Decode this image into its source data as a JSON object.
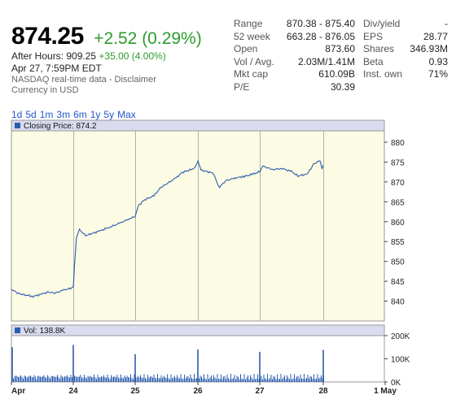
{
  "quote": {
    "price": "874.25",
    "change": "+2.52 (0.29%)",
    "after_hours_label": "After Hours: 909.25",
    "after_hours_change": "+35.00 (4.00%)",
    "as_of": "Apr 27, 7:59PM EDT",
    "disclaimer": "NASDAQ real-time data - Disclaimer",
    "currency": "Currency in USD"
  },
  "stats_left": [
    {
      "label": "Range",
      "value": "870.38 - 875.40"
    },
    {
      "label": "52 week",
      "value": "663.28 - 876.05"
    },
    {
      "label": "Open",
      "value": "873.60"
    },
    {
      "label": "Vol / Avg.",
      "value": "2.03M/1.41M"
    },
    {
      "label": "Mkt cap",
      "value": "610.09B"
    },
    {
      "label": "P/E",
      "value": "30.39"
    }
  ],
  "stats_right": [
    {
      "label": "Div/yield",
      "value": "-"
    },
    {
      "label": "EPS",
      "value": "28.77"
    },
    {
      "label": "Shares",
      "value": "346.93M"
    },
    {
      "label": "Beta",
      "value": "0.93"
    },
    {
      "label": "Inst. own",
      "value": "71%"
    }
  ],
  "ranges": [
    "1d",
    "5d",
    "1m",
    "3m",
    "6m",
    "1y",
    "5y",
    "Max"
  ],
  "colors": {
    "line": "#2a5db0",
    "price_bg": "#fcfbe3",
    "legend_bg": "#d9dbef",
    "gain": "#2c9b2c",
    "link": "#2255cc"
  },
  "chart_data": {
    "type": "line",
    "price_legend": "Closing Price: 874.2",
    "price_ylim": [
      835,
      880
    ],
    "price_yticks": [
      840,
      845,
      850,
      855,
      860,
      865,
      870,
      875,
      880
    ],
    "x_days": [
      "Apr",
      "24",
      "25",
      "26",
      "27",
      "28",
      "1 May"
    ],
    "price_series": [
      [
        0.0,
        843.0
      ],
      [
        0.1,
        842.0
      ],
      [
        0.2,
        841.6
      ],
      [
        0.35,
        841.2
      ],
      [
        0.5,
        841.8
      ],
      [
        0.6,
        842.3
      ],
      [
        0.7,
        842.0
      ],
      [
        0.85,
        842.8
      ],
      [
        0.95,
        843.2
      ],
      [
        1.0,
        843.5
      ],
      [
        1.02,
        849.0
      ],
      [
        1.05,
        856.0
      ],
      [
        1.1,
        858.0
      ],
      [
        1.2,
        856.5
      ],
      [
        1.3,
        857.0
      ],
      [
        1.45,
        857.8
      ],
      [
        1.6,
        858.7
      ],
      [
        1.75,
        859.6
      ],
      [
        1.9,
        860.7
      ],
      [
        2.0,
        861.3
      ],
      [
        2.05,
        864.0
      ],
      [
        2.15,
        865.5
      ],
      [
        2.3,
        866.5
      ],
      [
        2.4,
        868.5
      ],
      [
        2.5,
        869.5
      ],
      [
        2.65,
        871.0
      ],
      [
        2.75,
        872.4
      ],
      [
        2.85,
        872.9
      ],
      [
        2.95,
        873.5
      ],
      [
        3.0,
        875.4
      ],
      [
        3.05,
        873.0
      ],
      [
        3.15,
        872.6
      ],
      [
        3.25,
        872.2
      ],
      [
        3.3,
        870.0
      ],
      [
        3.35,
        868.7
      ],
      [
        3.45,
        870.3
      ],
      [
        3.6,
        871.0
      ],
      [
        3.75,
        871.4
      ],
      [
        3.9,
        872.0
      ],
      [
        4.0,
        872.6
      ],
      [
        4.05,
        874.0
      ],
      [
        4.2,
        873.1
      ],
      [
        4.35,
        873.4
      ],
      [
        4.5,
        872.6
      ],
      [
        4.6,
        871.5
      ],
      [
        4.75,
        872.0
      ],
      [
        4.85,
        874.5
      ],
      [
        4.95,
        875.4
      ],
      [
        4.98,
        873.2
      ],
      [
        5.0,
        874.2
      ]
    ],
    "volume_legend": "Vol: 138.8K",
    "volume_ylim": [
      0,
      200000
    ],
    "volume_yticks": [
      "0K",
      "100K",
      "200K"
    ],
    "volume_spikes": [
      {
        "x": 0.0,
        "v": 150000
      },
      {
        "x": 1.0,
        "v": 160000
      },
      {
        "x": 2.0,
        "v": 120000
      },
      {
        "x": 3.0,
        "v": 140000
      },
      {
        "x": 4.0,
        "v": 130000
      },
      {
        "x": 5.0,
        "v": 138800
      }
    ]
  }
}
